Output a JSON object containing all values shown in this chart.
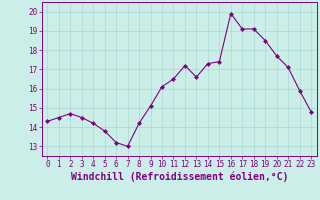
{
  "x": [
    0,
    1,
    2,
    3,
    4,
    5,
    6,
    7,
    8,
    9,
    10,
    11,
    12,
    13,
    14,
    15,
    16,
    17,
    18,
    19,
    20,
    21,
    22,
    23
  ],
  "y": [
    14.3,
    14.5,
    14.7,
    14.5,
    14.2,
    13.8,
    13.2,
    13.0,
    14.2,
    15.1,
    16.1,
    16.5,
    17.2,
    16.6,
    17.3,
    17.4,
    19.9,
    19.1,
    19.1,
    18.5,
    17.7,
    17.1,
    15.9,
    14.8
  ],
  "line_color": "#800080",
  "marker": "D",
  "marker_size": 2.0,
  "bg_color": "#cceee8",
  "grid_color": "#aad8d2",
  "xlabel": "Windchill (Refroidissement éolien,°C)",
  "ylim": [
    12.5,
    20.5
  ],
  "xlim": [
    -0.5,
    23.5
  ],
  "yticks": [
    13,
    14,
    15,
    16,
    17,
    18,
    19,
    20
  ],
  "xticks": [
    0,
    1,
    2,
    3,
    4,
    5,
    6,
    7,
    8,
    9,
    10,
    11,
    12,
    13,
    14,
    15,
    16,
    17,
    18,
    19,
    20,
    21,
    22,
    23
  ],
  "tick_color": "#800080",
  "label_color": "#800080",
  "tick_fontsize": 5.5,
  "xlabel_fontsize": 7.0,
  "linewidth": 0.8
}
